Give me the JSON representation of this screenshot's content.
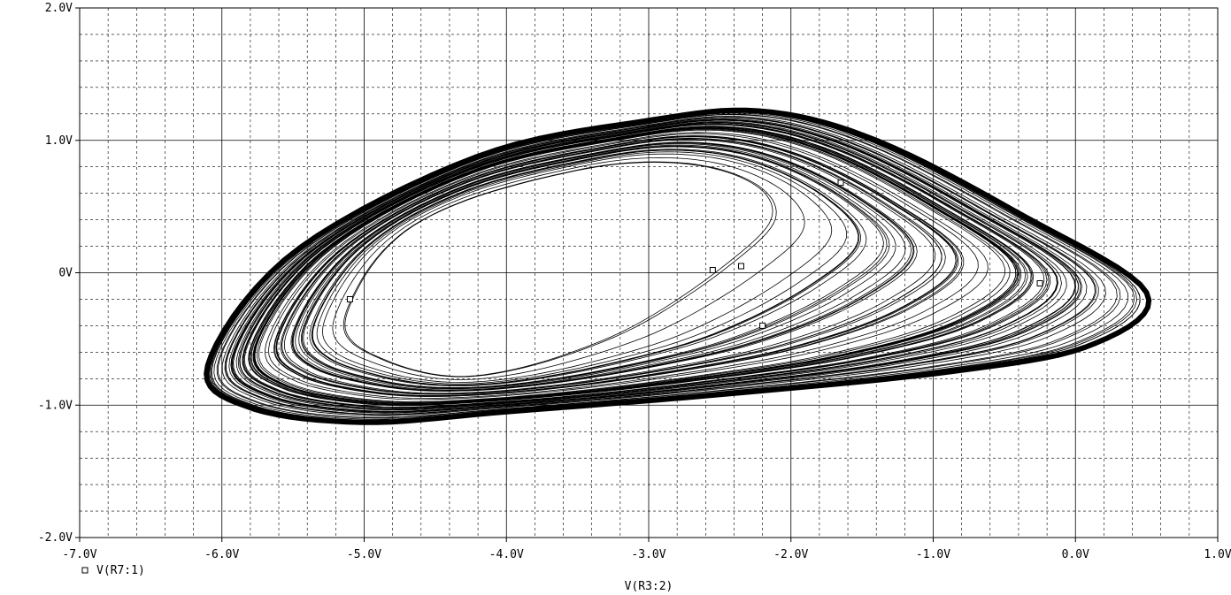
{
  "chart_data": {
    "type": "line",
    "title": "",
    "xlabel": "V(R3:2)",
    "ylabel": "",
    "xlim": [
      -7.0,
      1.0
    ],
    "ylim": [
      -2.0,
      2.0
    ],
    "x_ticks": [
      {
        "value": -7.0,
        "label": "-7.0V"
      },
      {
        "value": -6.0,
        "label": "-6.0V"
      },
      {
        "value": -5.0,
        "label": "-5.0V"
      },
      {
        "value": -4.0,
        "label": "-4.0V"
      },
      {
        "value": -3.0,
        "label": "-3.0V"
      },
      {
        "value": -2.0,
        "label": "-2.0V"
      },
      {
        "value": -1.0,
        "label": "-1.0V"
      },
      {
        "value": 0.0,
        "label": "0.0V"
      },
      {
        "value": 1.0,
        "label": "1.0V"
      }
    ],
    "y_ticks": [
      {
        "value": 2.0,
        "label": "2.0V"
      },
      {
        "value": 1.0,
        "label": "1.0V"
      },
      {
        "value": 0.0,
        "label": "0V"
      },
      {
        "value": -1.0,
        "label": "-1.0V"
      },
      {
        "value": -2.0,
        "label": "-2.0V"
      }
    ],
    "grid": true,
    "minor_grid_dashed": true,
    "legend_placement": "bottom-left",
    "series": [
      {
        "name": "V(R7:1)",
        "marker": "square",
        "color": "#000000",
        "attractor": {
          "outer_loop": [
            [
              -6.1,
              -0.7
            ],
            [
              -5.5,
              0.15
            ],
            [
              -4.2,
              0.88
            ],
            [
              -3.0,
              1.15
            ],
            [
              -2.2,
              1.22
            ],
            [
              -1.4,
              1.0
            ],
            [
              -0.4,
              0.45
            ],
            [
              0.5,
              -0.15
            ],
            [
              0.1,
              -0.55
            ],
            [
              -0.9,
              -0.75
            ],
            [
              -2.5,
              -0.92
            ],
            [
              -4.0,
              -1.05
            ],
            [
              -5.0,
              -1.13
            ],
            [
              -5.8,
              -1.02
            ]
          ],
          "inner_loop": [
            [
              -5.0,
              -0.25
            ],
            [
              -4.6,
              0.35
            ],
            [
              -3.6,
              0.72
            ],
            [
              -2.8,
              0.78
            ],
            [
              -2.4,
              0.6
            ],
            [
              -2.7,
              0.2
            ],
            [
              -3.5,
              -0.45
            ],
            [
              -4.3,
              -0.75
            ],
            [
              -4.9,
              -0.55
            ]
          ],
          "turns": 70
        }
      }
    ]
  }
}
